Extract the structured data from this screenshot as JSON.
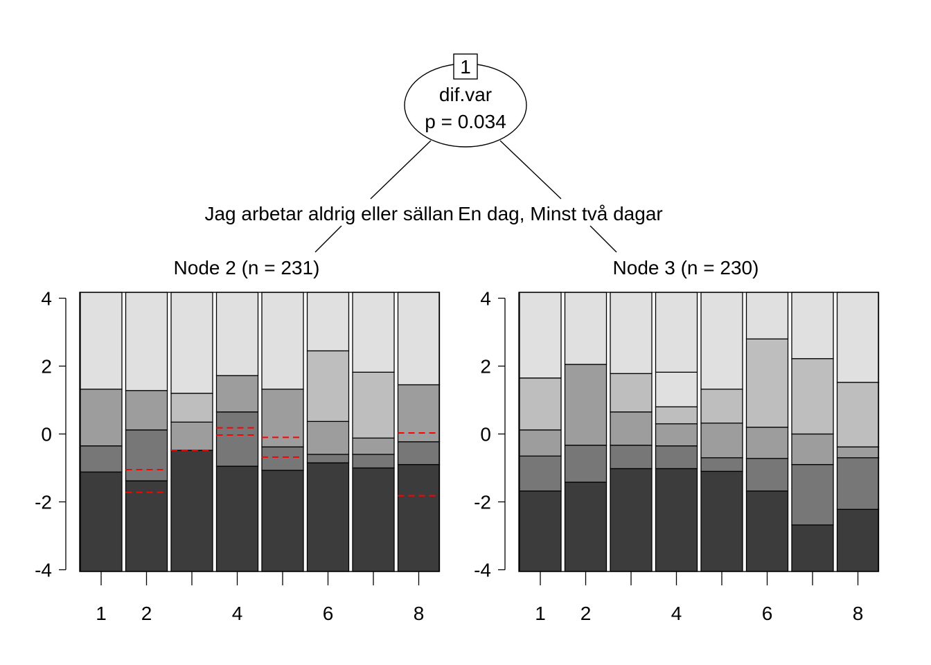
{
  "tree": {
    "root": {
      "id_label": "1",
      "variable": "dif.var",
      "p_label": "p = 0.034"
    },
    "split_labels": {
      "left": "Jag arbetar aldrig eller sällan",
      "right": "En dag, Minst två dagar"
    }
  },
  "chart_data": [
    {
      "type": "bar",
      "title": "Node 2 (n = 231)",
      "ylim": [
        -4,
        4
      ],
      "y_ticks": [
        -4,
        -2,
        0,
        2,
        4
      ],
      "y_tick_labels": [
        "-4",
        "-2",
        "0",
        "2",
        "4"
      ],
      "x_ticks": [
        1,
        2,
        3,
        4,
        5,
        6,
        7,
        8
      ],
      "x_tick_labels": [
        "1",
        "2",
        "",
        "4",
        "",
        "6",
        "",
        "8"
      ],
      "categories": [
        1,
        2,
        3,
        4,
        5,
        6,
        7,
        8
      ],
      "thresholds": [
        [
          -1.12,
          -0.35,
          1.32
        ],
        [
          -1.38,
          0.12,
          1.28
        ],
        [
          -0.48,
          -0.48,
          0.35,
          1.2
        ],
        [
          -0.95,
          0.65,
          1.72
        ],
        [
          -1.07,
          -0.38,
          1.32
        ],
        [
          -0.85,
          -0.6,
          0.37,
          2.45
        ],
        [
          -1.0,
          -0.6,
          -0.12,
          1.82
        ],
        [
          -0.9,
          -0.23,
          1.45
        ]
      ],
      "dashed_lines": [
        [],
        [
          -1.05,
          -1.72
        ],
        [
          -0.48
        ],
        [
          0.18,
          -0.03
        ],
        [
          -0.1,
          -0.68
        ],
        [],
        [],
        [
          0.03,
          -1.82
        ]
      ],
      "colors": [
        "#3c3c3c",
        "#777777",
        "#9d9d9d",
        "#bebebe",
        "#e0e0e0"
      ],
      "dash_color": "#ff0000"
    },
    {
      "type": "bar",
      "title": "Node 3 (n = 230)",
      "ylim": [
        -4,
        4
      ],
      "y_ticks": [
        -4,
        -2,
        0,
        2,
        4
      ],
      "y_tick_labels": [
        "-4",
        "-2",
        "0",
        "2",
        "4"
      ],
      "x_ticks": [
        1,
        2,
        3,
        4,
        5,
        6,
        7,
        8
      ],
      "x_tick_labels": [
        "1",
        "2",
        "",
        "4",
        "",
        "6",
        "",
        "8"
      ],
      "categories": [
        1,
        2,
        3,
        4,
        5,
        6,
        7,
        8
      ],
      "thresholds": [
        [
          -1.68,
          -0.65,
          0.12,
          1.65
        ],
        [
          -1.42,
          -0.33,
          2.05
        ],
        [
          -1.02,
          -0.33,
          0.65,
          1.78
        ],
        [
          -1.02,
          -0.35,
          0.3,
          0.8,
          1.82
        ],
        [
          -1.1,
          -0.7,
          0.32,
          1.32
        ],
        [
          -1.68,
          -0.72,
          0.2,
          2.8
        ],
        [
          -2.68,
          -0.9,
          0.0,
          2.22
        ],
        [
          -2.22,
          -0.7,
          -0.38,
          1.52
        ]
      ],
      "dashed_lines": [
        [],
        [],
        [],
        [],
        [],
        [],
        [],
        []
      ],
      "colors": [
        "#3c3c3c",
        "#777777",
        "#9d9d9d",
        "#bebebe",
        "#e0e0e0"
      ],
      "dash_color": "#ff0000"
    }
  ]
}
